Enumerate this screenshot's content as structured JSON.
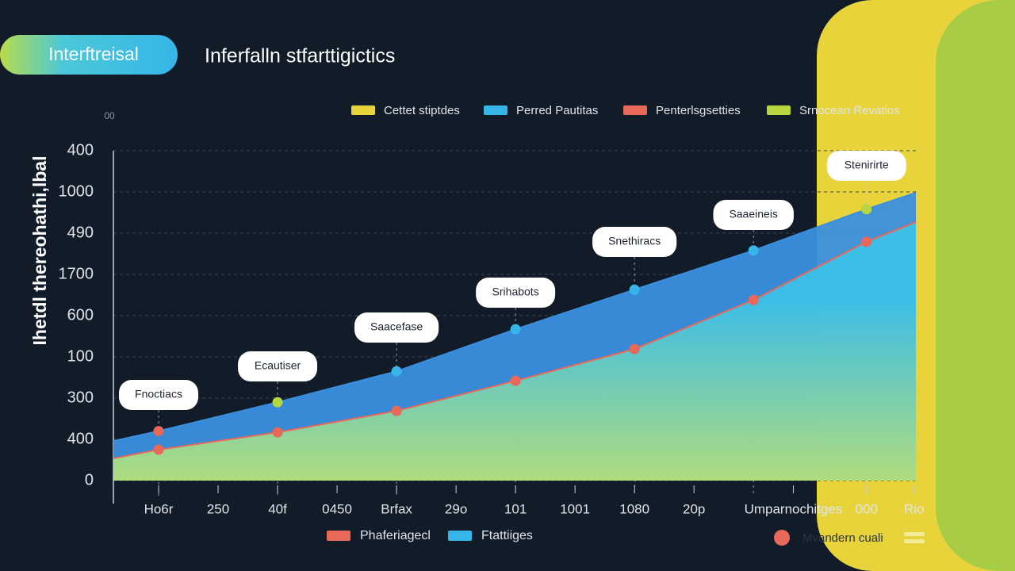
{
  "chart_data": {
    "type": "area",
    "badge": "Interftreisal",
    "title": "Inferfalln stfarttigictics",
    "y_label": "Ihetdl thereohathi,lbal",
    "y_unit_label": "00",
    "legend": [
      {
        "name": "Cettet stiptdes",
        "color": "#e8d43a"
      },
      {
        "name": "Perred Pautitas",
        "color": "#36b6e8"
      },
      {
        "name": "Penterlsgsetties",
        "color": "#e8685a"
      },
      {
        "name": "Srnocean Revatios",
        "color": "#b7d63f"
      }
    ],
    "bottom_legend": [
      {
        "name": "Phaferiagecl",
        "color": "#e8685a"
      },
      {
        "name": "Ftattiiges",
        "color": "#36b6e8"
      }
    ],
    "footer_note": "Mvandern cuali",
    "footer_color": "#e8685a",
    "xlim": [
      -0.76,
      12.73
    ],
    "xticks": [
      {
        "value": 0,
        "label": "Ho6r"
      },
      {
        "value": 1,
        "label": "250"
      },
      {
        "value": 2,
        "label": "40f"
      },
      {
        "value": 3,
        "label": "0450"
      },
      {
        "value": 4,
        "label": "Brfax"
      },
      {
        "value": 5,
        "label": "29o"
      },
      {
        "value": 6,
        "label": "101"
      },
      {
        "value": 7,
        "label": "1001"
      },
      {
        "value": 8,
        "label": "1080"
      },
      {
        "value": 9,
        "label": "20p"
      },
      {
        "value": 10.67,
        "label": "Umparnochitges"
      },
      {
        "value": 11.9,
        "label": "000"
      },
      {
        "value": 12.7,
        "label": "Rio"
      }
    ],
    "ylim": [
      0,
      800
    ],
    "yticks": [
      0,
      {
        "value": 100,
        "label": "400"
      },
      {
        "value": 200,
        "label": "300"
      },
      {
        "value": 300,
        "label": "100"
      },
      {
        "value": 400,
        "label": "600"
      },
      {
        "value": 500,
        "label": "1700"
      },
      {
        "value": 600,
        "label": "490"
      },
      {
        "value": 700,
        "label": "1000"
      },
      {
        "value": 800,
        "label": "400"
      }
    ],
    "grid": true,
    "series": [
      {
        "color": "#3b8fdf",
        "fill": "#3b8fdf",
        "x": [
          -0.76,
          0,
          2,
          4,
          6,
          8,
          10,
          11.9,
          12.73
        ],
        "values": [
          96,
          120,
          190,
          265,
          367,
          463,
          558,
          658,
          698
        ],
        "marker_colors": [
          null,
          "#e8685a",
          "#b7d63f",
          "#36b6e8",
          "#36b6e8",
          "#36b6e8",
          "#36b6e8",
          "#b7d63f",
          null
        ]
      },
      {
        "color": "#e8685a",
        "fill": "#3cc0e8",
        "fill_bottom": "#b5e07a",
        "x": [
          -0.76,
          0,
          2,
          4,
          6,
          8,
          10,
          11.9,
          12.73
        ],
        "values": [
          54,
          75,
          117,
          169,
          242,
          319,
          438,
          579,
          627
        ],
        "marker_colors": [
          null,
          "#e8685a",
          "#e8685a",
          "#e8685a",
          "#e8685a",
          "#e8685a",
          "#e8685a",
          "#e8685a",
          null
        ]
      }
    ],
    "annotations": [
      {
        "x": 0,
        "text": "Fnoctiacs"
      },
      {
        "x": 2,
        "text": "Ecautiser"
      },
      {
        "x": 4,
        "text": "Saacefase"
      },
      {
        "x": 6,
        "text": "Srihabots"
      },
      {
        "x": 8,
        "text": "Snethiracs"
      },
      {
        "x": 10,
        "text": "Saaeineis"
      },
      {
        "x": 11.9,
        "text": "Stenirirte"
      }
    ]
  }
}
